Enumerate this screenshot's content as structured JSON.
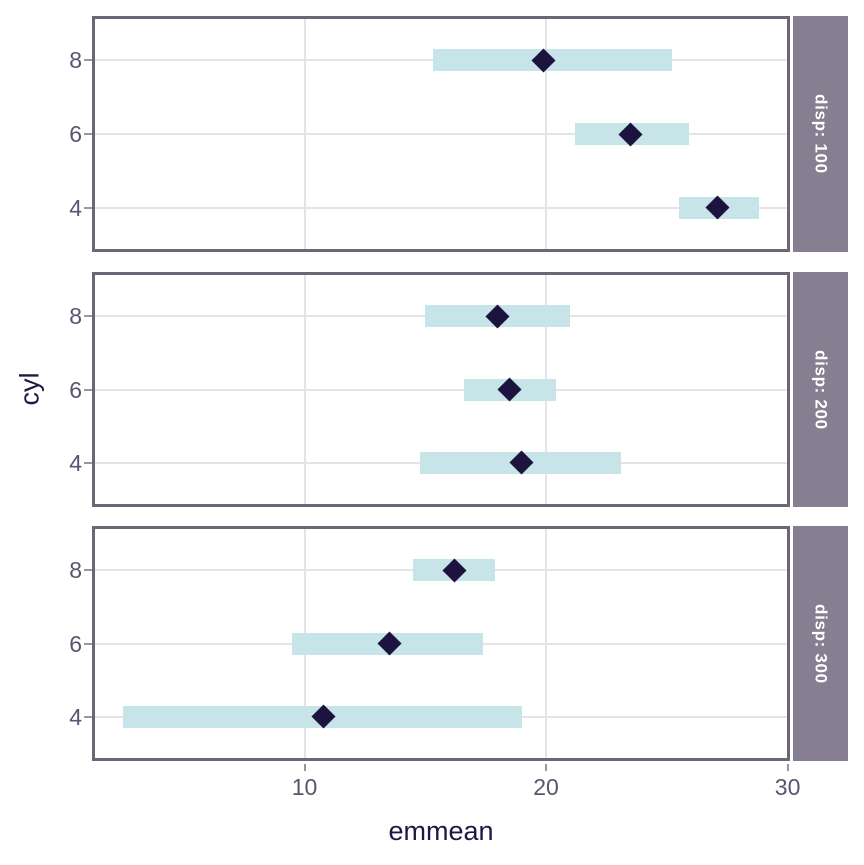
{
  "chart_data": {
    "type": "scatter",
    "mark": "point-with-interval",
    "title": "",
    "xlabel": "emmean",
    "ylabel": "cyl",
    "x_range": [
      1.2,
      30.1
    ],
    "x_ticks": [
      {
        "value": 10,
        "label": "10"
      },
      {
        "value": 20,
        "label": "20"
      },
      {
        "value": 30,
        "label": "30"
      }
    ],
    "y_categories_top_to_bottom": [
      "8",
      "6",
      "4"
    ],
    "grid": "major-only",
    "legend": "none",
    "facets": [
      {
        "label": "disp: 100",
        "rows": [
          {
            "cyl": "8",
            "estimate": 19.9,
            "lower": 15.3,
            "upper": 25.2
          },
          {
            "cyl": "6",
            "estimate": 23.5,
            "lower": 21.2,
            "upper": 25.9
          },
          {
            "cyl": "4",
            "estimate": 27.1,
            "lower": 25.5,
            "upper": 28.8
          }
        ]
      },
      {
        "label": "disp: 200",
        "rows": [
          {
            "cyl": "8",
            "estimate": 18.0,
            "lower": 15.0,
            "upper": 21.0
          },
          {
            "cyl": "6",
            "estimate": 18.5,
            "lower": 16.6,
            "upper": 20.4
          },
          {
            "cyl": "4",
            "estimate": 19.0,
            "lower": 14.8,
            "upper": 23.1
          }
        ]
      },
      {
        "label": "disp: 300",
        "rows": [
          {
            "cyl": "8",
            "estimate": 16.2,
            "lower": 14.5,
            "upper": 17.9
          },
          {
            "cyl": "6",
            "estimate": 13.5,
            "lower": 9.5,
            "upper": 17.4
          },
          {
            "cyl": "4",
            "estimate": 10.8,
            "lower": 2.5,
            "upper": 19.0
          }
        ]
      }
    ],
    "colors": {
      "interval_bar": "#C7E4E9",
      "point": "#1C133E",
      "strip_bg": "#857F91",
      "strip_text": "#FFFFFF",
      "panel_border": "#6C6675",
      "gridline": "#E4E3E7",
      "tick_label": "#5B5470",
      "axis_title": "#1E1843",
      "background": "#FFFFFF"
    }
  }
}
